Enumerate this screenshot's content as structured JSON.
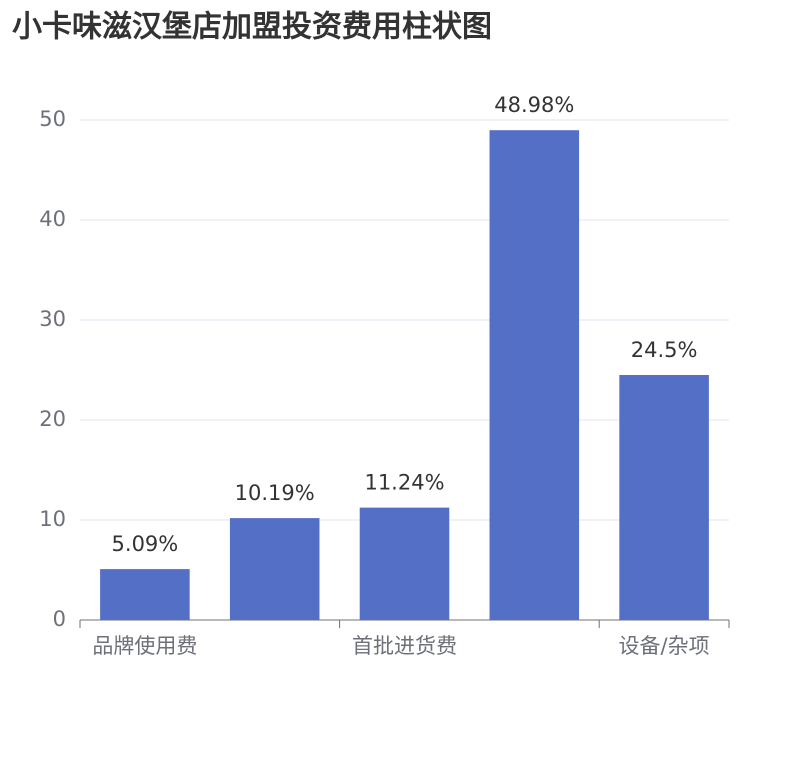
{
  "chart_data": {
    "type": "bar",
    "title": "小卡味滋汉堡店加盟投资费用柱状图",
    "categories": [
      "品牌使用费",
      null,
      "首批进货费",
      null,
      "设备/杂项"
    ],
    "values": [
      5.09,
      10.19,
      11.24,
      48.98,
      24.5
    ],
    "value_labels": [
      "5.09%",
      "10.19%",
      "11.24%",
      "48.98%",
      "24.5%"
    ],
    "color": "#5470c6",
    "ylim": [
      0,
      50
    ],
    "yticks": [
      0,
      10,
      20,
      30,
      40,
      50
    ],
    "grid": true
  }
}
